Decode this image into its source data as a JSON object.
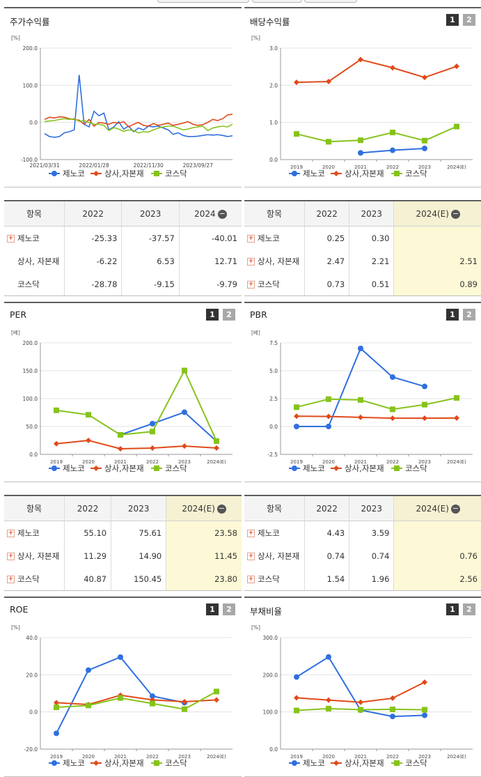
{
  "colors": {
    "company": "#2f6fe0",
    "sector": "#e04a1a",
    "kosdaq": "#86c31d"
  },
  "legend": [
    "제노코",
    "상사,자본재",
    "코스닥"
  ],
  "charts": {
    "stock": {
      "title": "주가수익률",
      "unit": "[%]",
      "yticks": [
        "200.0",
        "100.0",
        "0.0",
        "-100.0"
      ],
      "xlabels": [
        "2021/03/31",
        "2022/01/28",
        "2022/11/30",
        "2023/09/27"
      ]
    },
    "dividend": {
      "title": "배당수익률",
      "unit": "[%]",
      "btn1": "1",
      "btn2": "2",
      "yticks": [
        "3.0",
        "2.0",
        "1.0",
        "0.0"
      ],
      "xlabels": [
        "2019",
        "2020",
        "2021",
        "2022",
        "2023",
        "2024(E)"
      ]
    },
    "per": {
      "title": "PER",
      "unit": "[배]",
      "btn1": "1",
      "btn2": "2",
      "yticks": [
        "200.0",
        "150.0",
        "100.0",
        "50.0",
        "0.0"
      ],
      "xlabels": [
        "2019",
        "2020",
        "2021",
        "2022",
        "2023",
        "2024(E)"
      ]
    },
    "pbr": {
      "title": "PBR",
      "unit": "[배]",
      "btn1": "1",
      "btn2": "2",
      "yticks": [
        "7.5",
        "5.0",
        "2.5",
        "0.0",
        "-2.5"
      ],
      "xlabels": [
        "2019",
        "2020",
        "2021",
        "2022",
        "2023",
        "2024(E)"
      ]
    },
    "roe": {
      "title": "ROE",
      "unit": "[%]",
      "btn1": "1",
      "btn2": "2",
      "yticks": [
        "40.0",
        "20.0",
        "0.0",
        "-20.0"
      ],
      "xlabels": [
        "2019",
        "2020",
        "2021",
        "2022",
        "2023",
        "2024(E)"
      ]
    },
    "debt": {
      "title": "부채비율",
      "unit": "[%]",
      "btn1": "1",
      "btn2": "2",
      "yticks": [
        "300.0",
        "200.0",
        "100.0",
        "0.0"
      ],
      "xlabels": [
        "2019",
        "2020",
        "2021",
        "2022",
        "2023",
        "2024(E)"
      ]
    }
  },
  "tables": {
    "stock": {
      "headers": [
        "항목",
        "2022",
        "2023",
        "2024"
      ],
      "rows": [
        {
          "name": "제노코",
          "v": [
            "-25.33",
            "-37.57",
            "-40.01"
          ]
        },
        {
          "name": "상사, 자본재",
          "v": [
            "-6.22",
            "6.53",
            "12.71"
          ]
        },
        {
          "name": "코스닥",
          "v": [
            "-28.78",
            "-9.15",
            "-9.79"
          ]
        }
      ]
    },
    "dividend": {
      "headers": [
        "항목",
        "2022",
        "2023",
        "2024(E)"
      ],
      "rows": [
        {
          "name": "제노코",
          "v": [
            "0.25",
            "0.30",
            ""
          ]
        },
        {
          "name": "상사, 자본재",
          "v": [
            "2.47",
            "2.21",
            "2.51"
          ]
        },
        {
          "name": "코스닥",
          "v": [
            "0.73",
            "0.51",
            "0.89"
          ]
        }
      ]
    },
    "per": {
      "headers": [
        "항목",
        "2022",
        "2023",
        "2024(E)"
      ],
      "rows": [
        {
          "name": "제노코",
          "v": [
            "55.10",
            "75.61",
            "23.58"
          ]
        },
        {
          "name": "상사, 자본재",
          "v": [
            "11.29",
            "14.90",
            "11.45"
          ]
        },
        {
          "name": "코스닥",
          "v": [
            "40.87",
            "150.45",
            "23.80"
          ]
        }
      ]
    },
    "pbr": {
      "headers": [
        "항목",
        "2022",
        "2023",
        "2024(E)"
      ],
      "rows": [
        {
          "name": "제노코",
          "v": [
            "4.43",
            "3.59",
            ""
          ]
        },
        {
          "name": "상사, 자본재",
          "v": [
            "0.74",
            "0.74",
            "0.76"
          ]
        },
        {
          "name": "코스닥",
          "v": [
            "1.54",
            "1.96",
            "2.56"
          ]
        }
      ]
    }
  },
  "chart_data": [
    {
      "id": "stock",
      "type": "line",
      "title": "주가수익률",
      "ylabel": "[%]",
      "ylim": [
        -100,
        200
      ],
      "x": [
        "2021/03/31",
        "",
        "",
        "",
        "",
        "",
        "",
        "",
        "",
        "",
        "2022/01/28",
        "",
        "",
        "",
        "",
        "",
        "",
        "",
        "",
        "",
        "",
        "2022/11/30",
        "",
        "",
        "",
        "",
        "",
        "",
        "",
        "",
        "",
        "2023/09/27",
        "",
        "",
        "",
        "",
        "",
        "",
        ""
      ],
      "series": [
        {
          "name": "제노코",
          "values": [
            -30,
            -38,
            -40,
            -38,
            -28,
            -25,
            -20,
            128,
            -5,
            -12,
            30,
            18,
            25,
            -20,
            -12,
            2,
            -18,
            -10,
            -25,
            -15,
            -20,
            -10,
            -12,
            -10,
            -15,
            -20,
            -32,
            -28,
            -35,
            -38,
            -38,
            -37,
            -35,
            -33,
            -34,
            -33,
            -35,
            -38,
            -36
          ]
        },
        {
          "name": "상사,자본재",
          "values": [
            8,
            14,
            12,
            15,
            14,
            10,
            8,
            6,
            -5,
            8,
            -10,
            0,
            -2,
            -5,
            0,
            -2,
            2,
            -12,
            -5,
            0,
            -8,
            -10,
            -3,
            -8,
            -5,
            -2,
            -8,
            -5,
            -2,
            2,
            -5,
            -8,
            -6,
            0,
            8,
            5,
            10,
            20,
            22
          ]
        },
        {
          "name": "코스닥",
          "values": [
            2,
            4,
            5,
            8,
            10,
            8,
            10,
            3,
            5,
            0,
            -5,
            -5,
            -8,
            -22,
            -14,
            -18,
            -24,
            -20,
            -22,
            -28,
            -25,
            -26,
            -20,
            -15,
            -12,
            -10,
            -10,
            -15,
            -20,
            -18,
            -14,
            -12,
            -10,
            -22,
            -15,
            -12,
            -10,
            -12,
            -5
          ]
        }
      ]
    },
    {
      "id": "dividend",
      "type": "line",
      "title": "배당수익률",
      "ylabel": "[%]",
      "ylim": [
        0,
        3
      ],
      "x": [
        "2019",
        "2020",
        "2021",
        "2022",
        "2023",
        "2024(E)"
      ],
      "series": [
        {
          "name": "제노코",
          "values": [
            null,
            null,
            0.18,
            0.25,
            0.3,
            null
          ]
        },
        {
          "name": "상사,자본재",
          "values": [
            2.08,
            2.1,
            2.69,
            2.47,
            2.21,
            2.51
          ]
        },
        {
          "name": "코스닥",
          "values": [
            0.69,
            0.48,
            0.52,
            0.73,
            0.51,
            0.89
          ]
        }
      ]
    },
    {
      "id": "per",
      "type": "line",
      "title": "PER",
      "ylabel": "[배]",
      "ylim": [
        0,
        200
      ],
      "x": [
        "2019",
        "2020",
        "2021",
        "2022",
        "2023",
        "2024(E)"
      ],
      "series": [
        {
          "name": "제노코",
          "values": [
            null,
            null,
            35,
            55.1,
            75.61,
            23.58
          ]
        },
        {
          "name": "상사,자본재",
          "values": [
            19,
            25,
            10,
            11.29,
            14.9,
            11.45
          ]
        },
        {
          "name": "코스닥",
          "values": [
            79,
            71,
            35,
            40.87,
            150.45,
            23.8
          ]
        }
      ]
    },
    {
      "id": "pbr",
      "type": "line",
      "title": "PBR",
      "ylabel": "[배]",
      "ylim": [
        -2.5,
        7.5
      ],
      "x": [
        "2019",
        "2020",
        "2021",
        "2022",
        "2023",
        "2024(E)"
      ],
      "series": [
        {
          "name": "제노코",
          "values": [
            0,
            0,
            7.0,
            4.43,
            3.59,
            null
          ]
        },
        {
          "name": "상사,자본재",
          "values": [
            0.92,
            0.9,
            0.82,
            0.74,
            0.74,
            0.76
          ]
        },
        {
          "name": "코스닥",
          "values": [
            1.73,
            2.45,
            2.38,
            1.54,
            1.96,
            2.56
          ]
        }
      ]
    },
    {
      "id": "roe",
      "type": "line",
      "title": "ROE",
      "ylabel": "[%]",
      "ylim": [
        -20,
        40
      ],
      "x": [
        "2019",
        "2020",
        "2021",
        "2022",
        "2023",
        "2024(E)"
      ],
      "series": [
        {
          "name": "제노코",
          "values": [
            -11.5,
            22.5,
            29.5,
            8.5,
            5,
            null
          ]
        },
        {
          "name": "상사,자본재",
          "values": [
            5,
            4,
            9,
            6.5,
            5.5,
            6.5
          ]
        },
        {
          "name": "코스닥",
          "values": [
            2.5,
            3.5,
            7.5,
            4.5,
            1.5,
            11
          ]
        }
      ]
    },
    {
      "id": "debt",
      "type": "line",
      "title": "부채비율",
      "ylabel": "[%]",
      "ylim": [
        0,
        300
      ],
      "x": [
        "2019",
        "2020",
        "2021",
        "2022",
        "2023",
        "2024(E)"
      ],
      "series": [
        {
          "name": "제노코",
          "values": [
            194,
            248,
            105,
            88,
            91,
            null
          ]
        },
        {
          "name": "상사,자본재",
          "values": [
            138,
            132,
            126,
            137,
            180,
            null
          ]
        },
        {
          "name": "코스닥",
          "values": [
            104,
            109,
            106,
            107,
            106,
            null
          ]
        }
      ]
    }
  ]
}
